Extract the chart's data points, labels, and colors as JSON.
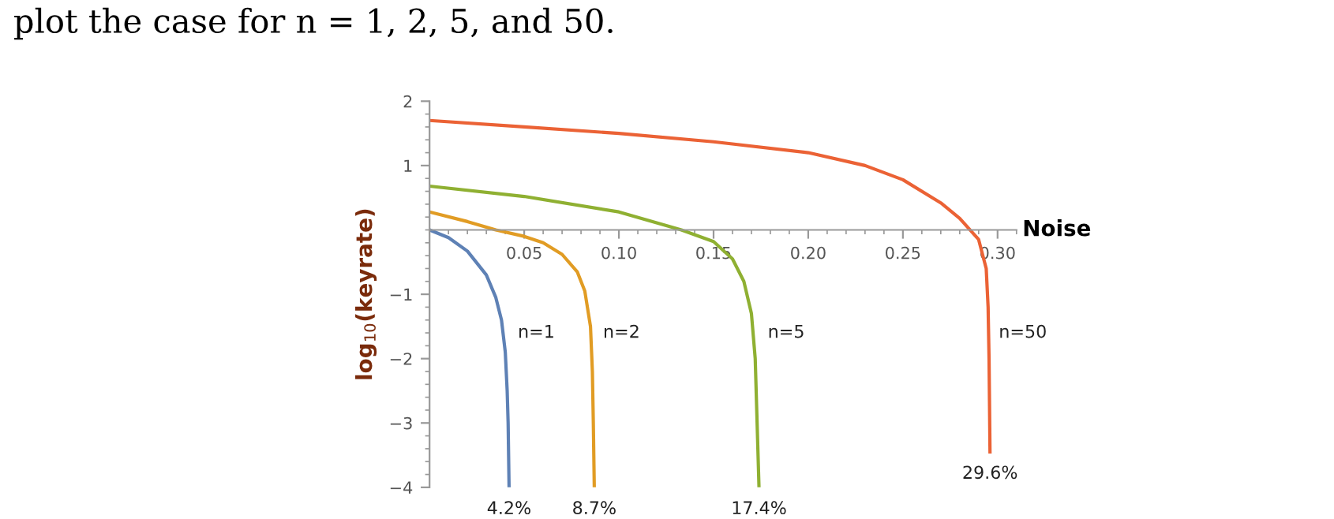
{
  "chart_data": {
    "type": "line",
    "title": "plot the case for n = 1, 2, 5, and 50.",
    "xlabel": "Noise",
    "ylabel": "log$_{10}$(keyrate)",
    "xlim": [
      0,
      0.31
    ],
    "ylim": [
      -4,
      2
    ],
    "xticks": [
      0.05,
      {
        "value": 0.1,
        "label": "0.10"
      },
      0.15,
      {
        "value": 0.2,
        "label": "0.20"
      },
      0.25,
      {
        "value": 0.3,
        "label": "0.30"
      }
    ],
    "yticks": [
      -4,
      -3,
      -2,
      -1,
      1,
      2
    ],
    "grid": false,
    "legend": false,
    "marker": "none",
    "line_style": "solid",
    "series": [
      {
        "name": "n=1",
        "color": "#5e81b5",
        "x": [
          0,
          0.01,
          0.02,
          0.03,
          0.035,
          0.038,
          0.04,
          0.041,
          0.0415,
          0.042
        ],
        "values": [
          0,
          -0.12,
          -0.33,
          -0.7,
          -1.05,
          -1.4,
          -1.9,
          -2.5,
          -3.0,
          -4
        ]
      },
      {
        "name": "n=2",
        "color": "#e19c24",
        "x": [
          0,
          0.02,
          0.035,
          0.05,
          0.06,
          0.07,
          0.078,
          0.082,
          0.085,
          0.086,
          0.0865,
          0.087
        ],
        "values": [
          0.28,
          0.13,
          0,
          -0.1,
          -0.2,
          -0.38,
          -0.65,
          -0.95,
          -1.5,
          -2.2,
          -3,
          -4
        ]
      },
      {
        "name": "n=5",
        "color": "#8fb032",
        "x": [
          0,
          0.05,
          0.1,
          0.133,
          0.15,
          0.16,
          0.166,
          0.17,
          0.172,
          0.173,
          0.174
        ],
        "values": [
          0.68,
          0.52,
          0.28,
          0,
          -0.18,
          -0.45,
          -0.8,
          -1.3,
          -2,
          -3,
          -4
        ]
      },
      {
        "name": "n=50",
        "color": "#eb6235",
        "x": [
          0,
          0.05,
          0.1,
          0.15,
          0.2,
          0.23,
          0.25,
          0.27,
          0.28,
          0.29,
          0.294,
          0.295,
          0.2955,
          0.296
        ],
        "values": [
          1.7,
          1.6,
          1.5,
          1.37,
          1.2,
          1.0,
          0.78,
          0.42,
          0.18,
          -0.15,
          -0.6,
          -1.2,
          -2,
          -3.45
        ]
      }
    ],
    "annotations": [
      {
        "text": "4.2%",
        "x": 0.042,
        "y": -4
      },
      {
        "text": "8.7%",
        "x": 0.087,
        "y": -4
      },
      {
        "text": "17.4%",
        "x": 0.174,
        "y": -4
      },
      {
        "text": "29.6%",
        "x": 0.296,
        "y": -3.45
      }
    ]
  }
}
